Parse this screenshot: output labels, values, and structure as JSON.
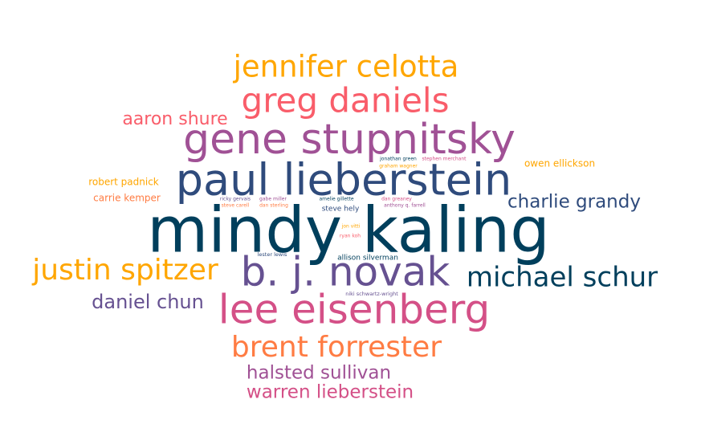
{
  "chart_data": {
    "type": "word_cloud",
    "title": "",
    "words": [
      {
        "text": "mindy kaling",
        "weight": 100,
        "color": "#003f5c"
      },
      {
        "text": "paul lieberstein",
        "weight": 72,
        "color": "#2f4b7c"
      },
      {
        "text": "b. j. novak",
        "weight": 72,
        "color": "#665191"
      },
      {
        "text": "gene stupnitsky",
        "weight": 70,
        "color": "#a05195"
      },
      {
        "text": "lee eisenberg",
        "weight": 70,
        "color": "#d45087"
      },
      {
        "text": "greg daniels",
        "weight": 62,
        "color": "#f95d6a"
      },
      {
        "text": "brent forrester",
        "weight": 56,
        "color": "#ff7c43"
      },
      {
        "text": "jennifer celotta",
        "weight": 56,
        "color": "#ffa600"
      },
      {
        "text": "justin spitzer",
        "weight": 56,
        "color": "#ffa600"
      },
      {
        "text": "michael schur",
        "weight": 48,
        "color": "#003f5c"
      },
      {
        "text": "charlie grandy",
        "weight": 36,
        "color": "#2f4b7c"
      },
      {
        "text": "daniel chun",
        "weight": 36,
        "color": "#665191"
      },
      {
        "text": "halsted sullivan",
        "weight": 34,
        "color": "#a05195"
      },
      {
        "text": "warren lieberstein",
        "weight": 32,
        "color": "#d45087"
      },
      {
        "text": "aaron shure",
        "weight": 30,
        "color": "#f95d6a"
      },
      {
        "text": "owen ellickson",
        "weight": 18,
        "color": "#ffa600"
      },
      {
        "text": "robert padnick",
        "weight": 18,
        "color": "#ffa600"
      },
      {
        "text": "carrie kemper",
        "weight": 18,
        "color": "#ff7c43"
      },
      {
        "text": "steve hely",
        "weight": 14,
        "color": "#2f4b7c"
      },
      {
        "text": "allison silverman",
        "weight": 14,
        "color": "#003f5c"
      },
      {
        "text": "lester lewis",
        "weight": 10,
        "color": "#2f4b7c"
      },
      {
        "text": "niki schwartz-wright",
        "weight": 10,
        "color": "#665191"
      },
      {
        "text": "jonathan green",
        "weight": 10,
        "color": "#003f5c"
      },
      {
        "text": "stephen merchant",
        "weight": 10,
        "color": "#d45087"
      },
      {
        "text": "graham wagner",
        "weight": 10,
        "color": "#ffa600"
      },
      {
        "text": "ricky gervais",
        "weight": 10,
        "color": "#665191"
      },
      {
        "text": "gabe miller",
        "weight": 10,
        "color": "#a05195"
      },
      {
        "text": "steve carell",
        "weight": 10,
        "color": "#ff7c43"
      },
      {
        "text": "dan sterling",
        "weight": 10,
        "color": "#ff7c43"
      },
      {
        "text": "amelie gillette",
        "weight": 10,
        "color": "#003f5c"
      },
      {
        "text": "dan greaney",
        "weight": 10,
        "color": "#d45087"
      },
      {
        "text": "anthony q. farrell",
        "weight": 10,
        "color": "#a05195"
      },
      {
        "text": "jon vitti",
        "weight": 10,
        "color": "#ffa600"
      },
      {
        "text": "ryan koh",
        "weight": 10,
        "color": "#f95d6a"
      }
    ]
  }
}
